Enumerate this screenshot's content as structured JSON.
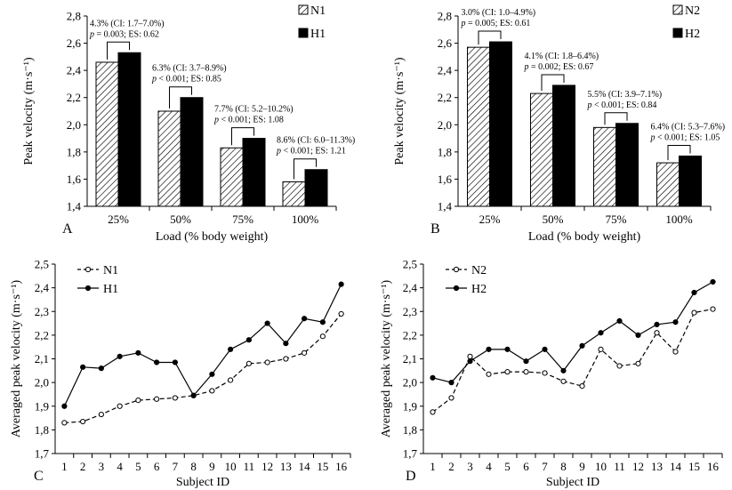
{
  "colors": {
    "normal_fill": "hatched",
    "heavy_fill": "#000000",
    "line": "#000000"
  },
  "chart_data": [
    {
      "panel": "A",
      "type": "bar",
      "categories": [
        "25%",
        "50%",
        "75%",
        "100%"
      ],
      "series": [
        {
          "name": "N1",
          "values": [
            2.46,
            2.1,
            1.83,
            1.58
          ]
        },
        {
          "name": "H1",
          "values": [
            2.53,
            2.2,
            1.9,
            1.67
          ]
        }
      ],
      "xlabel": "Load (% body weight)",
      "ylabel": "Peak velocity (m·s⁻¹)",
      "ylim": [
        1.4,
        2.8
      ],
      "yticks": [
        "1,4",
        "1,6",
        "1,8",
        "2,0",
        "2,2",
        "2,4",
        "2,6",
        "2,8"
      ],
      "legend_position": "top-right",
      "annotations": [
        {
          "line1": "4.3% (CI: 1.7–7.0%)",
          "line2": "p = 0.003; ES: 0.62"
        },
        {
          "line1": "6.3% (CI: 3.7–8.9%)",
          "line2": "p < 0.001; ES: 0.85"
        },
        {
          "line1": "7.7% (CI: 5.2–10.2%)",
          "line2": "p < 0.001; ES: 1.08"
        },
        {
          "line1": "8.6% (CI: 6.0–11.3%)",
          "line2": "p < 0.001; ES: 1.21"
        }
      ]
    },
    {
      "panel": "B",
      "type": "bar",
      "categories": [
        "25%",
        "50%",
        "75%",
        "100%"
      ],
      "series": [
        {
          "name": "N2",
          "values": [
            2.57,
            2.23,
            1.98,
            1.72
          ]
        },
        {
          "name": "H2",
          "values": [
            2.61,
            2.29,
            2.01,
            1.77
          ]
        }
      ],
      "xlabel": "Load (% body weight)",
      "ylabel": "Peak velocity (m·s⁻¹)",
      "ylim": [
        1.4,
        2.8
      ],
      "yticks": [
        "1,4",
        "1,6",
        "1,8",
        "2,0",
        "2,2",
        "2,4",
        "2,6",
        "2,8"
      ],
      "legend_position": "top-right",
      "annotations": [
        {
          "line1": "3.0% (CI: 1.0–4.9%)",
          "line2": "p = 0.005; ES: 0.61"
        },
        {
          "line1": "4.1% (CI: 1.8–6.4%)",
          "line2": "p = 0.002; ES: 0.67"
        },
        {
          "line1": "5.5% (CI: 3.9–7.1%)",
          "line2": "p < 0.001; ES: 0.84"
        },
        {
          "line1": "6.4% (CI: 5.3–7.6%)",
          "line2": "p < 0.001; ES: 1.05"
        }
      ]
    },
    {
      "panel": "C",
      "type": "line",
      "x": [
        1,
        2,
        3,
        4,
        5,
        6,
        7,
        8,
        9,
        10,
        11,
        12,
        13,
        14,
        15,
        16
      ],
      "series": [
        {
          "name": "N1",
          "style": "dashed",
          "marker": "open-circle",
          "values": [
            1.83,
            1.835,
            1.865,
            1.9,
            1.925,
            1.93,
            1.935,
            1.945,
            1.965,
            2.01,
            2.08,
            2.085,
            2.1,
            2.125,
            2.195,
            2.29
          ]
        },
        {
          "name": "H1",
          "style": "solid",
          "marker": "filled-circle",
          "values": [
            1.9,
            2.065,
            2.06,
            2.11,
            2.125,
            2.085,
            2.085,
            1.945,
            2.035,
            2.14,
            2.18,
            2.25,
            2.165,
            2.27,
            2.255,
            2.415
          ]
        }
      ],
      "xlabel": "Subject ID",
      "ylabel": "Averaged peak velocity (m·s⁻¹)",
      "ylim": [
        1.7,
        2.5
      ],
      "yticks": [
        "1,7",
        "1,8",
        "1,9",
        "2,0",
        "2,1",
        "2,2",
        "2,3",
        "2,4",
        "2,5"
      ],
      "legend_position": "top-left"
    },
    {
      "panel": "D",
      "type": "line",
      "x": [
        1,
        2,
        3,
        4,
        5,
        6,
        7,
        8,
        9,
        10,
        11,
        12,
        13,
        14,
        15,
        16
      ],
      "series": [
        {
          "name": "N2",
          "style": "dashed",
          "marker": "open-circle",
          "values": [
            1.875,
            1.935,
            2.11,
            2.035,
            2.045,
            2.045,
            2.04,
            2.005,
            1.985,
            2.14,
            2.07,
            2.08,
            2.21,
            2.13,
            2.295,
            2.31
          ]
        },
        {
          "name": "H2",
          "style": "solid",
          "marker": "filled-circle",
          "values": [
            2.02,
            2.0,
            2.09,
            2.14,
            2.14,
            2.09,
            2.14,
            2.05,
            2.155,
            2.21,
            2.26,
            2.2,
            2.245,
            2.255,
            2.38,
            2.425
          ]
        }
      ],
      "xlabel": "Subject ID",
      "ylabel": "Averaged peak velocity (m·s⁻¹)",
      "ylim": [
        1.7,
        2.5
      ],
      "yticks": [
        "1,7",
        "1,8",
        "1,9",
        "2,0",
        "2,1",
        "2,2",
        "2,3",
        "2,4",
        "2,5"
      ],
      "legend_position": "top-left"
    }
  ]
}
